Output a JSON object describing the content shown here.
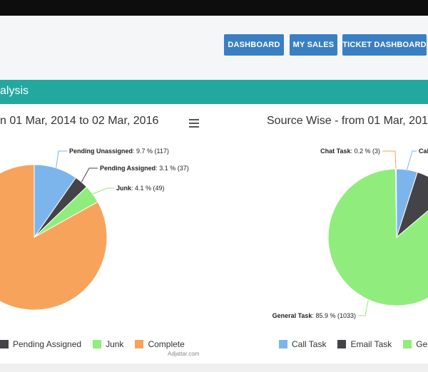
{
  "nav": {
    "dashboard": "DASHBOARD",
    "my_sales": "MY SALES",
    "ticket_dashboard": "TICKET DASHBOARD"
  },
  "section": {
    "title": "alysis"
  },
  "left_chart": {
    "title": "n 01 Mar, 2014 to 02 Mar, 2016"
  },
  "right_chart": {
    "title": "Source Wise - from 01 Mar, 201"
  },
  "watermark": "Adjattar.com",
  "colors": {
    "teal": "#22a89f",
    "button": "#3a7fc4",
    "blue": "#7cb5ec",
    "dark": "#434348",
    "green": "#90ed7d",
    "orange": "#f7a35c"
  },
  "chart_data": [
    {
      "type": "pie",
      "title": "n 01 Mar, 2014 to 02 Mar, 2016",
      "slices": [
        {
          "name": "Pending Unassigned",
          "label": "Pending Unassigned",
          "value_text": ": 9.7 % (117)",
          "percent": 9.7,
          "count": 117,
          "color": "#7cb5ec"
        },
        {
          "name": "Pending Assigned",
          "label": "Pending Assigned",
          "value_text": ": 3.1 % (37)",
          "percent": 3.1,
          "count": 37,
          "color": "#434348"
        },
        {
          "name": "Junk",
          "label": "Junk",
          "value_text": ": 4.1 % (49)",
          "percent": 4.1,
          "count": 49,
          "color": "#90ed7d"
        },
        {
          "name": "Complete",
          "label": "",
          "value_text": "",
          "percent": 83.1,
          "count": null,
          "color": "#f7a35c"
        }
      ],
      "legend": [
        "Pending Assigned",
        "Junk",
        "Complete"
      ]
    },
    {
      "type": "pie",
      "title": "Source Wise - from 01 Mar, 201",
      "slices": [
        {
          "name": "Chat Task",
          "label": "Chat Task",
          "value_text": ": 0.2 % (3)",
          "percent": 0.2,
          "count": 3,
          "color": "#f7a35c"
        },
        {
          "name": "Call Task",
          "label": "Cal",
          "value_text": "",
          "percent": 5.0,
          "count": null,
          "color": "#7cb5ec"
        },
        {
          "name": "Email Task",
          "label": "",
          "value_text": "",
          "percent": 8.9,
          "count": null,
          "color": "#434348"
        },
        {
          "name": "General Task",
          "label": "General Task",
          "value_text": ": 85.9 % (1033)",
          "percent": 85.9,
          "count": 1033,
          "color": "#90ed7d"
        }
      ],
      "legend": [
        "Call Task",
        "Email Task",
        "Gene"
      ]
    }
  ]
}
